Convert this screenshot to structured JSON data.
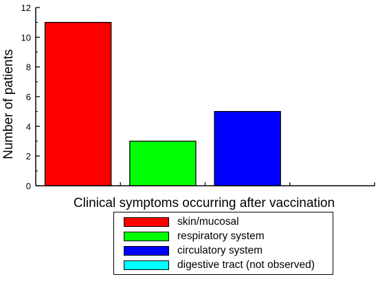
{
  "chart_data": {
    "type": "bar",
    "categories": [
      "skin/mucosal",
      "respiratory system",
      "circulatory system",
      "digestive tract (not observed)"
    ],
    "values": [
      11,
      3,
      5,
      0
    ],
    "colors": [
      "#ff0000",
      "#00ff00",
      "#0000ff",
      "#00ffff"
    ],
    "xlabel": "Clinical symptoms occurring after vaccination",
    "ylabel": "Number of patients",
    "ylim": [
      0,
      12
    ],
    "yticks": [
      0,
      2,
      4,
      6,
      8,
      10,
      12
    ],
    "grid": false,
    "legend_placement": "bottom-center"
  }
}
